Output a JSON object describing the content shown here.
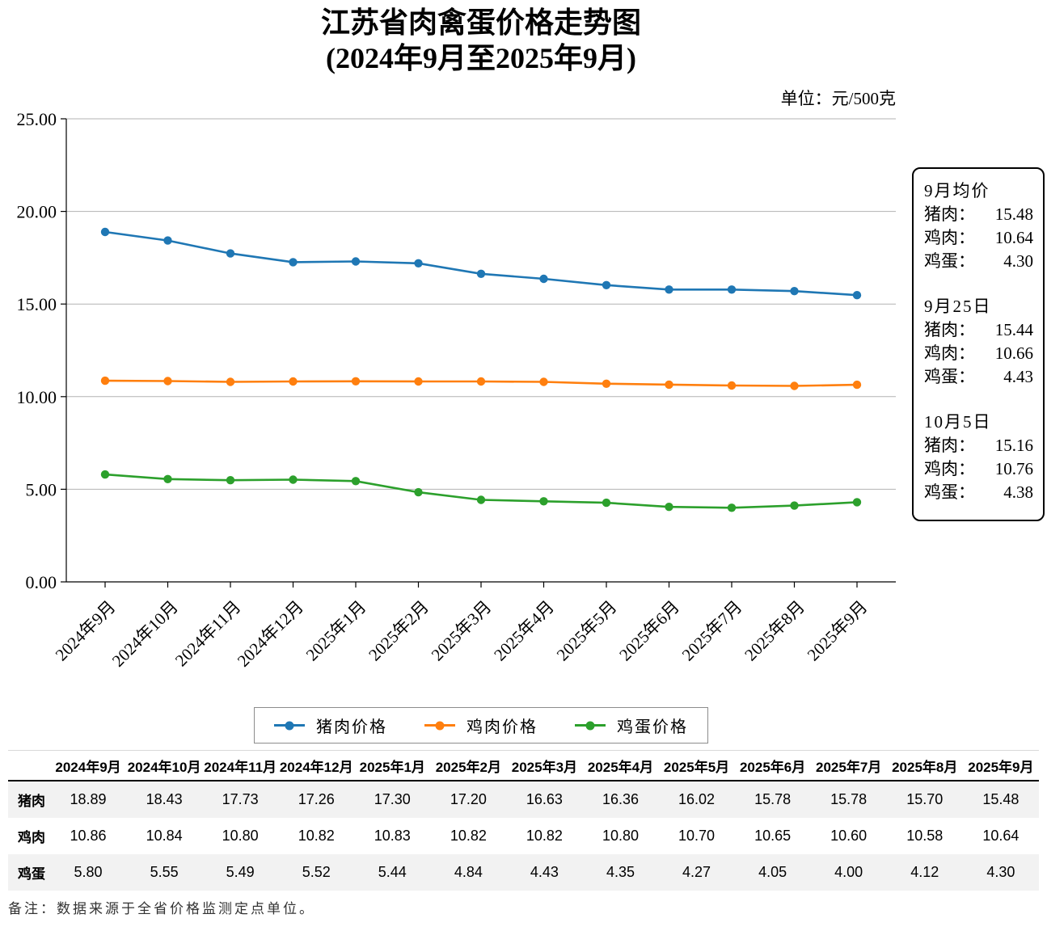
{
  "title": {
    "line1": "江苏省肉禽蛋价格走势图",
    "line2": "(2024年9月至2025年9月)"
  },
  "unit_label": "单位：元/500克",
  "chart_data": {
    "type": "line",
    "title": "江苏省肉禽蛋价格走势图(2024年9月至2025年9月)",
    "ylabel": "元/500克",
    "ylim": [
      0,
      25
    ],
    "ytick_labels": [
      "0.00",
      "5.00",
      "10.00",
      "15.00",
      "20.00",
      "25.00"
    ],
    "grid": true,
    "legend_position": "bottom",
    "categories": [
      "2024年9月",
      "2024年10月",
      "2024年11月",
      "2024年12月",
      "2025年1月",
      "2025年2月",
      "2025年3月",
      "2025年4月",
      "2025年5月",
      "2025年6月",
      "2025年7月",
      "2025年8月",
      "2025年9月"
    ],
    "series": [
      {
        "name": "猪肉价格",
        "color": "#1f77b4",
        "values": [
          18.89,
          18.43,
          17.73,
          17.26,
          17.3,
          17.2,
          16.63,
          16.36,
          16.02,
          15.78,
          15.78,
          15.7,
          15.48
        ]
      },
      {
        "name": "鸡肉价格",
        "color": "#ff7f0e",
        "values": [
          10.86,
          10.84,
          10.8,
          10.82,
          10.83,
          10.82,
          10.82,
          10.8,
          10.7,
          10.65,
          10.6,
          10.58,
          10.64
        ]
      },
      {
        "name": "鸡蛋价格",
        "color": "#2ca02c",
        "values": [
          5.8,
          5.55,
          5.49,
          5.52,
          5.44,
          4.84,
          4.43,
          4.35,
          4.27,
          4.05,
          4.0,
          4.12,
          4.3
        ]
      }
    ]
  },
  "annotation_box": {
    "sections": [
      {
        "heading": "9月均价",
        "rows": [
          {
            "label": "猪肉：",
            "value": "15.48"
          },
          {
            "label": "鸡肉：",
            "value": "10.64"
          },
          {
            "label": "鸡蛋：",
            "value": "4.30"
          }
        ]
      },
      {
        "heading": "9月25日",
        "rows": [
          {
            "label": "猪肉：",
            "value": "15.44"
          },
          {
            "label": "鸡肉：",
            "value": "10.66"
          },
          {
            "label": "鸡蛋：",
            "value": "4.43"
          }
        ]
      },
      {
        "heading": "10月5日",
        "rows": [
          {
            "label": "猪肉：",
            "value": "15.16"
          },
          {
            "label": "鸡肉：",
            "value": "10.76"
          },
          {
            "label": "鸡蛋：",
            "value": "4.38"
          }
        ]
      }
    ]
  },
  "table": {
    "columns": [
      "2024年9月",
      "2024年10月",
      "2024年11月",
      "2024年12月",
      "2025年1月",
      "2025年2月",
      "2025年3月",
      "2025年4月",
      "2025年5月",
      "2025年6月",
      "2025年7月",
      "2025年8月",
      "2025年9月"
    ],
    "rows": [
      {
        "label": "猪肉",
        "values": [
          "18.89",
          "18.43",
          "17.73",
          "17.26",
          "17.30",
          "17.20",
          "16.63",
          "16.36",
          "16.02",
          "15.78",
          "15.78",
          "15.70",
          "15.48"
        ]
      },
      {
        "label": "鸡肉",
        "values": [
          "10.86",
          "10.84",
          "10.80",
          "10.82",
          "10.83",
          "10.82",
          "10.82",
          "10.80",
          "10.70",
          "10.65",
          "10.60",
          "10.58",
          "10.64"
        ]
      },
      {
        "label": "鸡蛋",
        "values": [
          "5.80",
          "5.55",
          "5.49",
          "5.52",
          "5.44",
          "4.84",
          "4.43",
          "4.35",
          "4.27",
          "4.05",
          "4.00",
          "4.12",
          "4.30"
        ]
      }
    ]
  },
  "footnote": "备注：数据来源于全省价格监测定点单位。"
}
